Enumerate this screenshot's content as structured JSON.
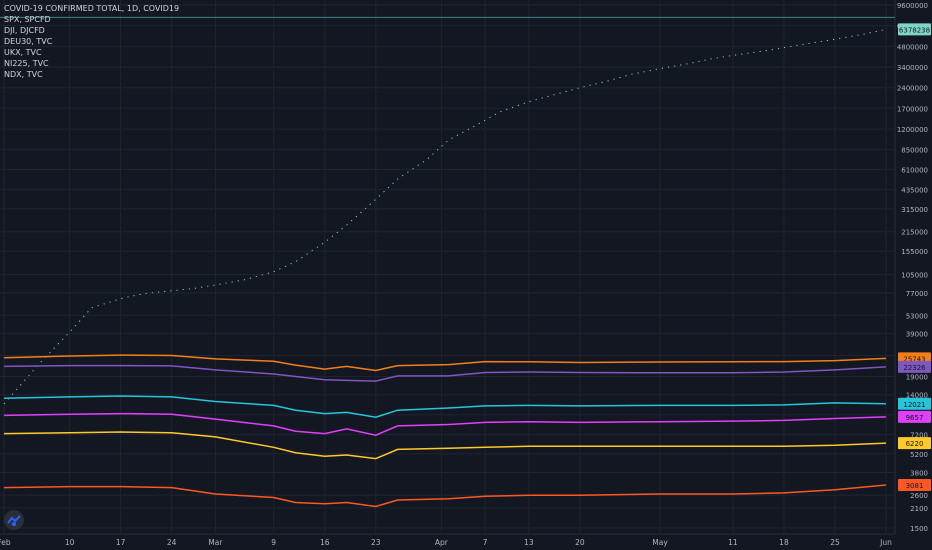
{
  "legend": {
    "title": "COVID-19 CONFIRMED TOTAL, 1D, COVID19",
    "items": [
      "SPX, SPCFD",
      "DJI, DJCFD",
      "DEU30, TVC",
      "UKX, TVC",
      "NI225, TVC",
      "NDX, TVC"
    ]
  },
  "chart_data": {
    "type": "line",
    "x_ticks": [
      "Feb",
      "10",
      "17",
      "24",
      "Mar",
      "9",
      "16",
      "23",
      "Apr",
      "7",
      "13",
      "20",
      "May",
      "11",
      "18",
      "25",
      "Jun"
    ],
    "y_ticks": [
      "9600000",
      "6800000",
      "4800000",
      "3400000",
      "2400000",
      "1700000",
      "1200000",
      "850000",
      "610000",
      "435000",
      "315000",
      "215000",
      "155000",
      "105000",
      "77000",
      "53000",
      "39000",
      "27000",
      "19000",
      "14000",
      "10000",
      "7200",
      "5200",
      "3800",
      "2600",
      "2100",
      "1500"
    ],
    "y_scale": "log",
    "grid": true,
    "series": [
      {
        "name": "COVID-19 CONFIRMED TOTAL",
        "color": "#7fd6c7",
        "style": "dotted",
        "x": [
          "2020-02-01",
          "2020-02-06",
          "2020-02-10",
          "2020-02-13",
          "2020-02-17",
          "2020-02-20",
          "2020-02-24",
          "2020-02-27",
          "2020-03-01",
          "2020-03-05",
          "2020-03-09",
          "2020-03-12",
          "2020-03-16",
          "2020-03-19",
          "2020-03-23",
          "2020-03-26",
          "2020-03-30",
          "2020-04-02",
          "2020-04-06",
          "2020-04-09",
          "2020-04-13",
          "2020-04-16",
          "2020-04-20",
          "2020-04-24",
          "2020-04-27",
          "2020-05-01",
          "2020-05-05",
          "2020-05-08",
          "2020-05-12",
          "2020-05-16",
          "2020-05-20",
          "2020-05-25",
          "2020-05-29",
          "2020-06-01"
        ],
        "values": [
          12000,
          24000,
          40000,
          60000,
          70000,
          76000,
          80000,
          83000,
          88000,
          96000,
          110000,
          130000,
          180000,
          240000,
          370000,
          520000,
          720000,
          1000000,
          1300000,
          1600000,
          1900000,
          2100000,
          2400000,
          2700000,
          3000000,
          3300000,
          3600000,
          3900000,
          4200000,
          4500000,
          4900000,
          5400000,
          5900000,
          6378238
        ]
      },
      {
        "name": "SPX",
        "color": "#f57f17",
        "style": "solid",
        "x": [
          "2020-02-01",
          "2020-02-10",
          "2020-02-17",
          "2020-02-24",
          "2020-03-01",
          "2020-03-09",
          "2020-03-12",
          "2020-03-16",
          "2020-03-19",
          "2020-03-23",
          "2020-03-26",
          "2020-04-02",
          "2020-04-07",
          "2020-04-13",
          "2020-04-20",
          "2020-05-01",
          "2020-05-11",
          "2020-05-18",
          "2020-05-25",
          "2020-06-01"
        ],
        "values": [
          26000,
          26800,
          27200,
          27000,
          25500,
          24500,
          23000,
          21500,
          22500,
          21000,
          22800,
          23200,
          24400,
          24300,
          24000,
          24200,
          24300,
          24400,
          24800,
          25743
        ]
      },
      {
        "name": "DJI",
        "color": "#7e57c2",
        "style": "solid",
        "x": [
          "2020-02-01",
          "2020-02-10",
          "2020-02-17",
          "2020-02-24",
          "2020-03-01",
          "2020-03-09",
          "2020-03-12",
          "2020-03-16",
          "2020-03-19",
          "2020-03-23",
          "2020-03-26",
          "2020-04-02",
          "2020-04-07",
          "2020-04-13",
          "2020-04-20",
          "2020-05-01",
          "2020-05-11",
          "2020-05-18",
          "2020-05-25",
          "2020-06-01"
        ],
        "values": [
          22500,
          22800,
          22800,
          22700,
          21200,
          19800,
          19000,
          18000,
          17800,
          17600,
          19200,
          19200,
          20300,
          20500,
          20300,
          20200,
          20200,
          20500,
          21200,
          22326
        ]
      },
      {
        "name": "DEU30",
        "color": "#26c6da",
        "style": "solid",
        "x": [
          "2020-02-01",
          "2020-02-10",
          "2020-02-17",
          "2020-02-24",
          "2020-03-01",
          "2020-03-09",
          "2020-03-12",
          "2020-03-16",
          "2020-03-19",
          "2020-03-23",
          "2020-03-26",
          "2020-04-02",
          "2020-04-07",
          "2020-04-13",
          "2020-04-20",
          "2020-05-01",
          "2020-05-11",
          "2020-05-18",
          "2020-05-25",
          "2020-06-01"
        ],
        "values": [
          13200,
          13500,
          13700,
          13500,
          12500,
          11700,
          10800,
          10200,
          10400,
          9600,
          10800,
          11200,
          11600,
          11700,
          11600,
          11700,
          11700,
          11800,
          12200,
          12021
        ]
      },
      {
        "name": "UKX",
        "color": "#e040fb",
        "style": "solid",
        "x": [
          "2020-02-01",
          "2020-02-10",
          "2020-02-17",
          "2020-02-24",
          "2020-03-01",
          "2020-03-09",
          "2020-03-12",
          "2020-03-16",
          "2020-03-19",
          "2020-03-23",
          "2020-03-26",
          "2020-04-02",
          "2020-04-07",
          "2020-04-13",
          "2020-04-20",
          "2020-05-01",
          "2020-05-11",
          "2020-05-18",
          "2020-05-25",
          "2020-06-01"
        ],
        "values": [
          9900,
          10100,
          10200,
          10100,
          9300,
          8300,
          7600,
          7300,
          7900,
          7100,
          8300,
          8500,
          8800,
          8900,
          8800,
          8900,
          9000,
          9100,
          9400,
          9657
        ]
      },
      {
        "name": "NI225",
        "color": "#ffca28",
        "style": "solid",
        "x": [
          "2020-02-01",
          "2020-02-10",
          "2020-02-17",
          "2020-02-24",
          "2020-03-01",
          "2020-03-09",
          "2020-03-12",
          "2020-03-16",
          "2020-03-19",
          "2020-03-23",
          "2020-03-26",
          "2020-04-02",
          "2020-04-07",
          "2020-04-13",
          "2020-04-20",
          "2020-05-01",
          "2020-05-11",
          "2020-05-18",
          "2020-05-25",
          "2020-06-01"
        ],
        "values": [
          7300,
          7400,
          7500,
          7400,
          6900,
          5800,
          5300,
          5000,
          5100,
          4800,
          5600,
          5700,
          5800,
          5900,
          5900,
          5900,
          5900,
          5900,
          6000,
          6220
        ]
      },
      {
        "name": "NDX",
        "color": "#ff5722",
        "style": "solid",
        "x": [
          "2020-02-01",
          "2020-02-10",
          "2020-02-17",
          "2020-02-24",
          "2020-03-01",
          "2020-03-09",
          "2020-03-12",
          "2020-03-16",
          "2020-03-19",
          "2020-03-23",
          "2020-03-26",
          "2020-04-02",
          "2020-04-07",
          "2020-04-13",
          "2020-04-20",
          "2020-05-01",
          "2020-05-11",
          "2020-05-18",
          "2020-05-25",
          "2020-06-01"
        ],
        "values": [
          2950,
          3000,
          3000,
          2950,
          2650,
          2500,
          2300,
          2250,
          2300,
          2150,
          2400,
          2450,
          2550,
          2600,
          2600,
          2650,
          2650,
          2700,
          2850,
          3081
        ]
      }
    ],
    "last_labels": [
      "6378238",
      "25743",
      "22326",
      "12021",
      "9657",
      "6220",
      "3081"
    ],
    "horizontal_line": 7800000
  }
}
